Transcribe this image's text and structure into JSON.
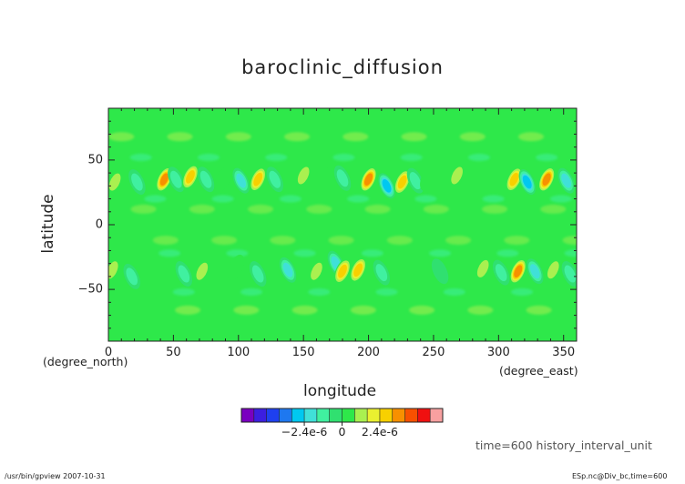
{
  "chart_data": {
    "type": "heatmap",
    "title": "baroclinic_diffusion",
    "xlabel": "longitude",
    "ylabel": "latitude",
    "x_unit": "(degree_east)",
    "y_unit": "(degree_north)",
    "xlim": [
      0,
      360
    ],
    "ylim": [
      -90,
      90
    ],
    "x_ticks": [
      "0",
      "50",
      "100",
      "150",
      "200",
      "250",
      "300",
      "350"
    ],
    "y_ticks": [
      "50",
      "0",
      "−50"
    ],
    "x_tick_values": [
      0,
      50,
      100,
      150,
      200,
      250,
      300,
      350
    ],
    "y_tick_values": [
      50,
      0,
      -50
    ],
    "grid": false,
    "colorbar": {
      "colors": [
        "#7a00c0",
        "#3c1ee0",
        "#1e40f0",
        "#1e78f0",
        "#00c8f0",
        "#40e0d8",
        "#40f0a0",
        "#30e070",
        "#2ee84a",
        "#aaf050",
        "#eaf030",
        "#f8d000",
        "#f89000",
        "#f85000",
        "#f01010",
        "#f8a0a0"
      ],
      "tick_labels": [
        "−2.4e-6",
        "0",
        "2.4e-6"
      ],
      "tick_values": [
        -2.4e-06,
        0,
        2.4e-06
      ],
      "step": 8e-07
    },
    "features": [
      {
        "lon": 5,
        "lat": 33,
        "value": 1.2e-06
      },
      {
        "lon": 22,
        "lat": 33,
        "value": -1.2e-06
      },
      {
        "lon": 43,
        "lat": 35,
        "value": 3.6e-06
      },
      {
        "lon": 52,
        "lat": 35,
        "value": -1.4e-06
      },
      {
        "lon": 63,
        "lat": 37,
        "value": 3.3e-06
      },
      {
        "lon": 75,
        "lat": 35,
        "value": -1.6e-06
      },
      {
        "lon": 88,
        "lat": 35,
        "value": 1e-06
      },
      {
        "lon": 102,
        "lat": 34,
        "value": -2.4e-06
      },
      {
        "lon": 115,
        "lat": 35,
        "value": 3.2e-06
      },
      {
        "lon": 128,
        "lat": 35,
        "value": -1.4e-06
      },
      {
        "lon": 150,
        "lat": 38,
        "value": 1.2e-06
      },
      {
        "lon": 168,
        "lat": 35,
        "value": 1.1e-06
      },
      {
        "lon": 180,
        "lat": 36,
        "value": -1.2e-06
      },
      {
        "lon": 200,
        "lat": 35,
        "value": 3.6e-06
      },
      {
        "lon": 214,
        "lat": 30,
        "value": -3.4e-06
      },
      {
        "lon": 226,
        "lat": 33,
        "value": 3.4e-06
      },
      {
        "lon": 236,
        "lat": 34,
        "value": -1.6e-06
      },
      {
        "lon": 246,
        "lat": 36,
        "value": 1.1e-06
      },
      {
        "lon": 268,
        "lat": 38,
        "value": 1.2e-06
      },
      {
        "lon": 312,
        "lat": 35,
        "value": 3.4e-06
      },
      {
        "lon": 322,
        "lat": 33,
        "value": -3.2e-06
      },
      {
        "lon": 337,
        "lat": 35,
        "value": 4e-06
      },
      {
        "lon": 352,
        "lat": 34,
        "value": -2.4e-06
      },
      {
        "lon": 3,
        "lat": -35,
        "value": 1.2e-06
      },
      {
        "lon": 18,
        "lat": -40,
        "value": -1.2e-06
      },
      {
        "lon": 35,
        "lat": -37,
        "value": 1.1e-06
      },
      {
        "lon": 58,
        "lat": -38,
        "value": -1.2e-06
      },
      {
        "lon": 72,
        "lat": -36,
        "value": 1.2e-06
      },
      {
        "lon": 98,
        "lat": -33,
        "value": 1.1e-06
      },
      {
        "lon": 115,
        "lat": -38,
        "value": -1.4e-06
      },
      {
        "lon": 132,
        "lat": -34,
        "value": 1e-06
      },
      {
        "lon": 138,
        "lat": -35,
        "value": -2.4e-06
      },
      {
        "lon": 160,
        "lat": -36,
        "value": 1.2e-06
      },
      {
        "lon": 175,
        "lat": -30,
        "value": -2.4e-06
      },
      {
        "lon": 180,
        "lat": -36,
        "value": 3.2e-06
      },
      {
        "lon": 192,
        "lat": -35,
        "value": 3.3e-06
      },
      {
        "lon": 210,
        "lat": -37,
        "value": -1.2e-06
      },
      {
        "lon": 255,
        "lat": -36,
        "value": -1e-06
      },
      {
        "lon": 288,
        "lat": -34,
        "value": 1.2e-06
      },
      {
        "lon": 302,
        "lat": -37,
        "value": -1.2e-06
      },
      {
        "lon": 315,
        "lat": -36,
        "value": 3.6e-06
      },
      {
        "lon": 328,
        "lat": -36,
        "value": -2.4e-06
      },
      {
        "lon": 342,
        "lat": -35,
        "value": 1.4e-06
      },
      {
        "lon": 355,
        "lat": -38,
        "value": -1.2e-06
      }
    ]
  },
  "annotations": {
    "time_note": "time=600 history_interval_unit",
    "footer_left": "/usr/bin/gpview   2007-10-31",
    "footer_right": "ESp.nc@Div_bc,time=600"
  }
}
